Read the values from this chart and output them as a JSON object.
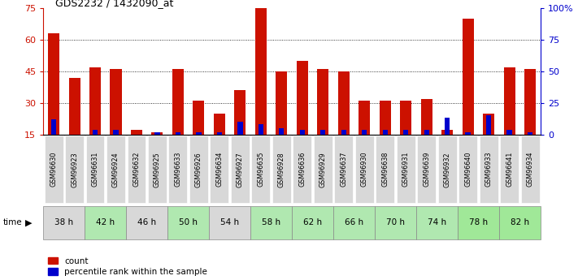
{
  "title": "GDS2232 / 1432090_at",
  "samples": [
    "GSM96630",
    "GSM96923",
    "GSM96631",
    "GSM96924",
    "GSM96632",
    "GSM96925",
    "GSM96633",
    "GSM96926",
    "GSM96634",
    "GSM96927",
    "GSM96635",
    "GSM96928",
    "GSM96636",
    "GSM96929",
    "GSM96637",
    "GSM96930",
    "GSM96638",
    "GSM96931",
    "GSM96639",
    "GSM96932",
    "GSM96640",
    "GSM96933",
    "GSM96641",
    "GSM96934"
  ],
  "count_values": [
    63,
    42,
    47,
    46,
    17,
    16,
    46,
    31,
    25,
    36,
    75,
    45,
    50,
    46,
    45,
    31,
    31,
    31,
    32,
    17,
    70,
    25,
    47,
    46
  ],
  "percentile_values": [
    22,
    15,
    17,
    17,
    15,
    16,
    16,
    16,
    16,
    21,
    20,
    18,
    17,
    17,
    17,
    17,
    17,
    17,
    17,
    23,
    16,
    24,
    17,
    16
  ],
  "time_groups": [
    {
      "label": "38 h",
      "start": 0,
      "end": 2
    },
    {
      "label": "42 h",
      "start": 2,
      "end": 4
    },
    {
      "label": "46 h",
      "start": 4,
      "end": 6
    },
    {
      "label": "50 h",
      "start": 6,
      "end": 8
    },
    {
      "label": "54 h",
      "start": 8,
      "end": 10
    },
    {
      "label": "58 h",
      "start": 10,
      "end": 12
    },
    {
      "label": "62 h",
      "start": 12,
      "end": 14
    },
    {
      "label": "66 h",
      "start": 14,
      "end": 16
    },
    {
      "label": "70 h",
      "start": 16,
      "end": 18
    },
    {
      "label": "74 h",
      "start": 18,
      "end": 20
    },
    {
      "label": "78 h",
      "start": 20,
      "end": 22
    },
    {
      "label": "82 h",
      "start": 22,
      "end": 24
    }
  ],
  "sample_box_color": "#d8d8d8",
  "time_group_colors": [
    "#d8d8d8",
    "#b0e8b0",
    "#d8d8d8",
    "#b0e8b0",
    "#d8d8d8",
    "#b0e8b0",
    "#b0e8b0",
    "#b0e8b0",
    "#b0e8b0",
    "#b0e8b0",
    "#a0e898",
    "#a0e898"
  ],
  "bar_color_red": "#cc1100",
  "bar_color_blue": "#0000cc",
  "ylim_left": [
    15,
    75
  ],
  "ylim_right": [
    0,
    100
  ],
  "yticks_left": [
    15,
    30,
    45,
    60,
    75
  ],
  "yticks_right": [
    0,
    25,
    50,
    75,
    100
  ],
  "ytick_labels_right": [
    "0",
    "25",
    "50",
    "75",
    "100%"
  ],
  "grid_values": [
    30,
    45,
    60
  ],
  "legend_count": "count",
  "legend_percentile": "percentile rank within the sample",
  "background_color": "#ffffff",
  "bar_width": 0.55
}
